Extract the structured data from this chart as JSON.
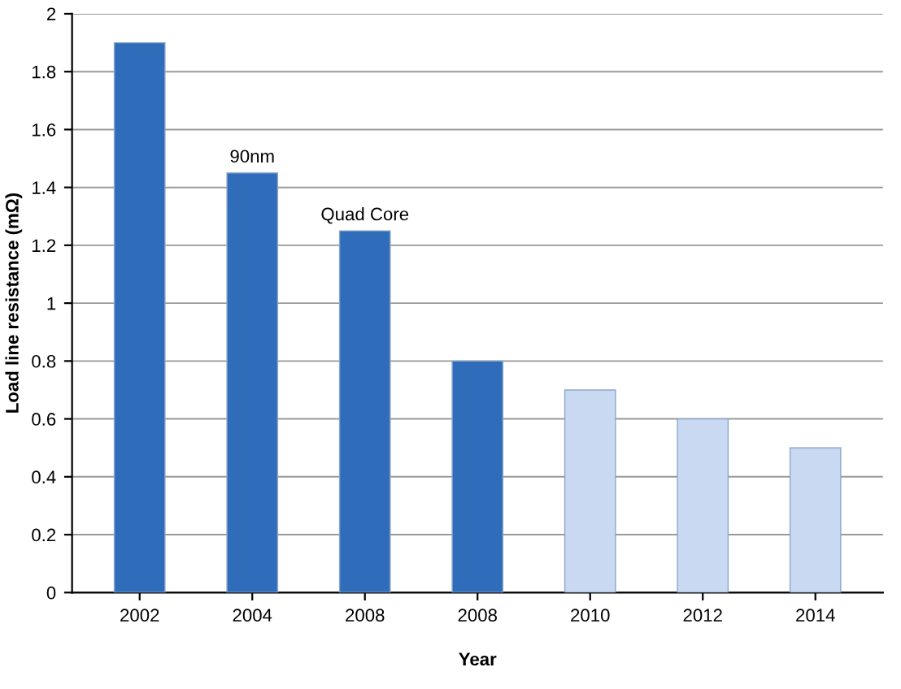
{
  "chart_data": {
    "type": "bar",
    "xlabel": "Year",
    "ylabel": "Load line resistance (mΩ)",
    "categories": [
      "2002",
      "2004",
      "2008",
      "2008",
      "2010",
      "2012",
      "2014"
    ],
    "values": [
      1.9,
      1.45,
      1.25,
      0.8,
      0.7,
      0.6,
      0.5
    ],
    "colors": [
      "#2f6cb9",
      "#2f6cb9",
      "#2f6cb9",
      "#2f6cb9",
      "#c9d9f1",
      "#c9d9f1",
      "#c9d9f1"
    ],
    "ylim": [
      0,
      2
    ],
    "yticks": [
      0,
      0.2,
      0.4,
      0.6,
      0.8,
      1,
      1.2,
      1.4,
      1.6,
      1.8,
      2
    ],
    "grid": "y",
    "annotations": [
      {
        "text": "90nm",
        "x": "2004",
        "y": 1.45
      },
      {
        "text": "Quad Core",
        "x": "2008",
        "y": 1.25
      }
    ]
  }
}
